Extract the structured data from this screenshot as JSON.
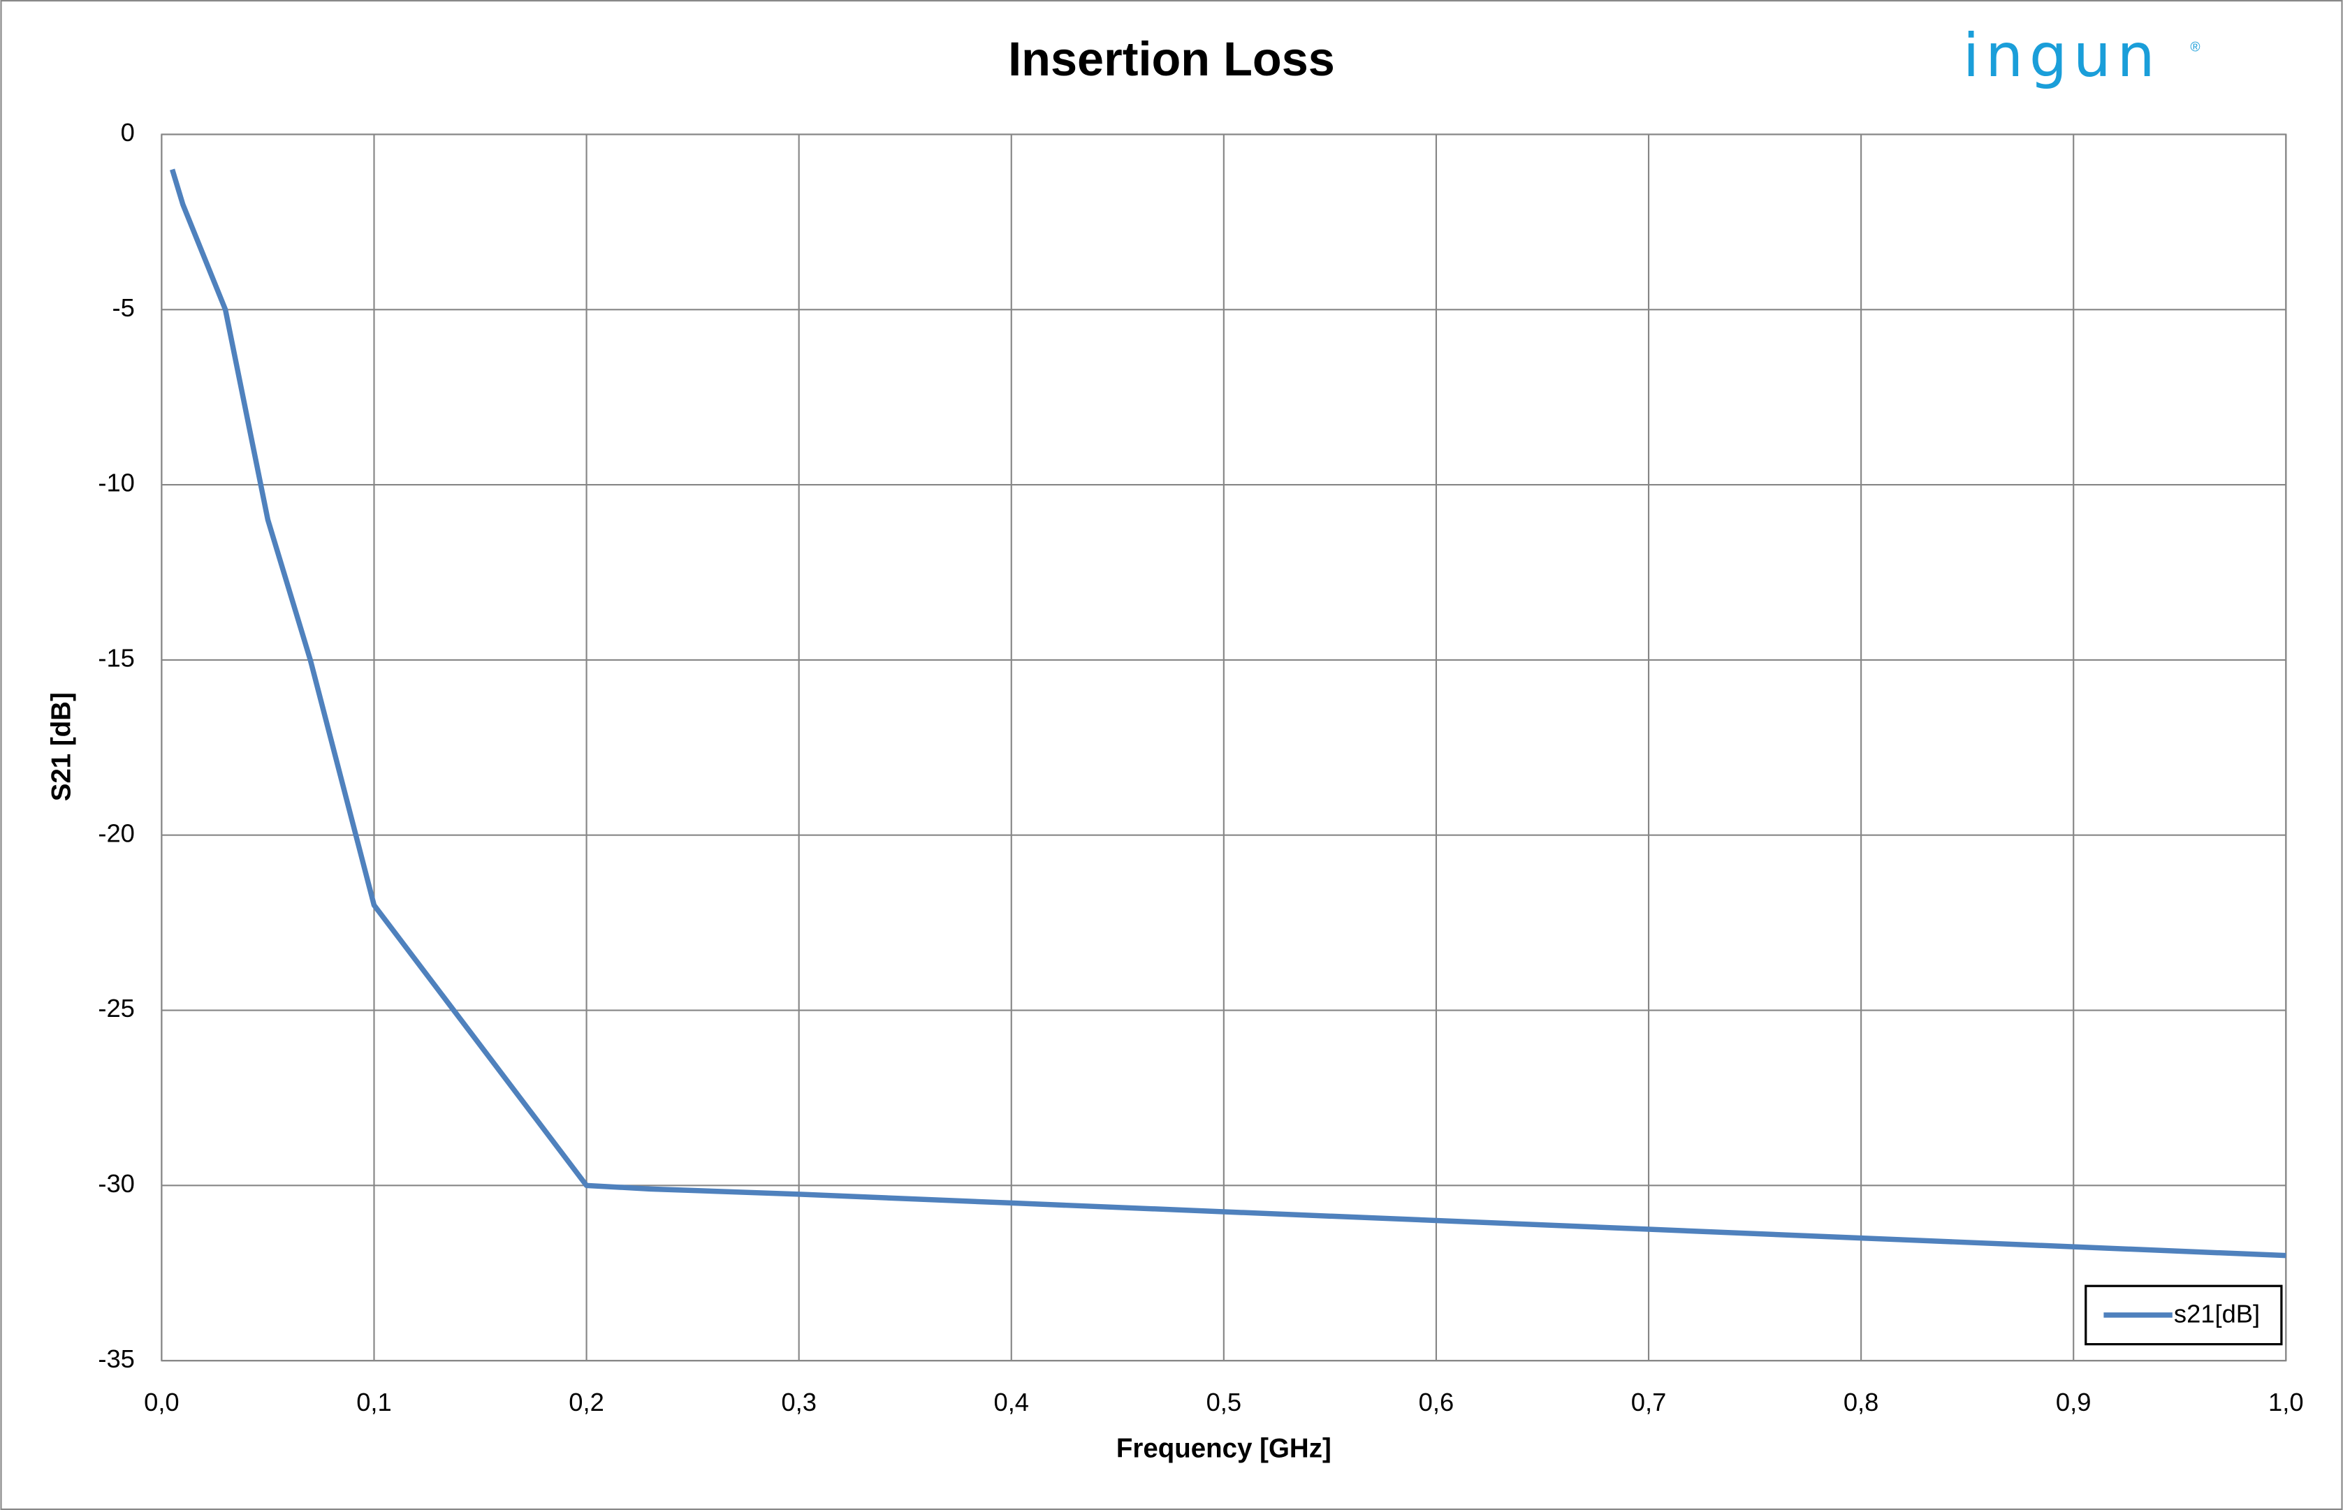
{
  "chart_data": {
    "type": "line",
    "title": "Insertion Loss",
    "x_label": "Frequency [GHz]",
    "y_label": "S21 [dB]",
    "x": [
      0.005,
      0.01,
      0.03,
      0.05,
      0.07,
      0.1,
      0.2,
      0.23,
      0.3,
      0.4,
      0.5,
      0.6,
      0.7,
      0.8,
      0.9,
      1.0
    ],
    "series": [
      {
        "name": "s21[dB]",
        "color": "#4f81bd",
        "values": [
          -1,
          -2,
          -5,
          -11,
          -15,
          -22,
          -30,
          -30.1,
          -30.25,
          -30.5,
          -30.75,
          -31,
          -31.25,
          -31.5,
          -31.75,
          -32
        ]
      }
    ],
    "xlim": [
      0,
      1
    ],
    "ylim": [
      -35,
      0
    ],
    "xticks": [
      {
        "value": 0,
        "label": "0,0"
      },
      {
        "value": 0.1,
        "label": "0,1"
      },
      {
        "value": 0.2,
        "label": "0,2"
      },
      {
        "value": 0.3,
        "label": "0,3"
      },
      {
        "value": 0.4,
        "label": "0,4"
      },
      {
        "value": 0.5,
        "label": "0,5"
      },
      {
        "value": 0.6,
        "label": "0,6"
      },
      {
        "value": 0.7,
        "label": "0,7"
      },
      {
        "value": 0.8,
        "label": "0,8"
      },
      {
        "value": 0.9,
        "label": "0,9"
      },
      {
        "value": 1,
        "label": "1,0"
      }
    ],
    "yticks": [
      0,
      -5,
      -10,
      -15,
      -20,
      -25,
      -30,
      -35
    ],
    "grid": true,
    "legend": "lower right"
  },
  "logo": {
    "name": "ingun",
    "mark": "®"
  }
}
